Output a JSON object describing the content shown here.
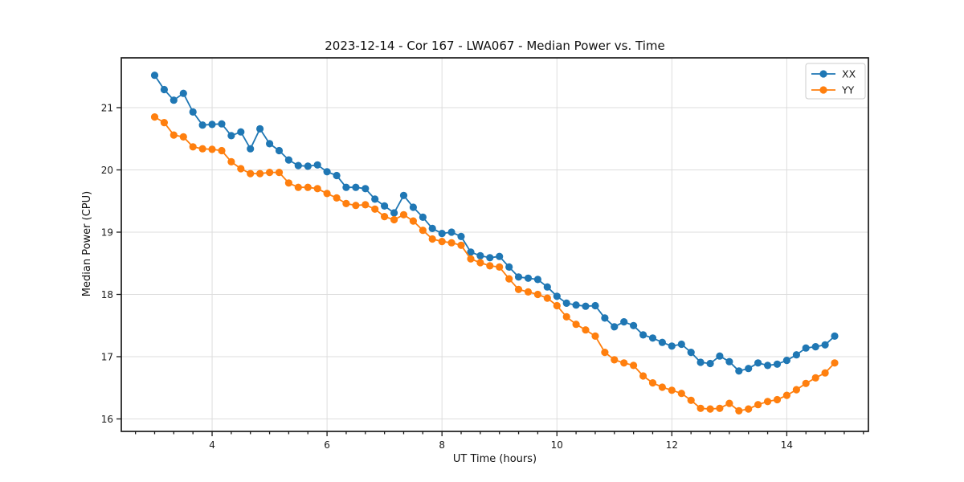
{
  "chart_data": {
    "type": "line",
    "title": "2023-12-14 - Cor 167 - LWA067 - Median Power vs. Time",
    "xlabel": "UT Time (hours)",
    "ylabel": "Median Power (CPU)",
    "xlim": [
      2.42,
      15.42
    ],
    "ylim": [
      15.8,
      21.8
    ],
    "x_major_ticks": [
      4,
      6,
      8,
      10,
      12,
      14
    ],
    "y_major_ticks": [
      16,
      17,
      18,
      19,
      20,
      21
    ],
    "x_minor_step": 0.33333,
    "grid": "major",
    "grid_color": "#dddddd",
    "spine_color": "#1a1a1a",
    "legend_position": "upper right",
    "legend_entries": [
      "XX",
      "YY"
    ],
    "x": [
      3.0,
      3.167,
      3.333,
      3.5,
      3.667,
      3.833,
      4.0,
      4.167,
      4.333,
      4.5,
      4.667,
      4.833,
      5.0,
      5.167,
      5.333,
      5.5,
      5.667,
      5.833,
      6.0,
      6.167,
      6.333,
      6.5,
      6.667,
      6.833,
      7.0,
      7.167,
      7.333,
      7.5,
      7.667,
      7.833,
      8.0,
      8.167,
      8.333,
      8.5,
      8.667,
      8.833,
      9.0,
      9.167,
      9.333,
      9.5,
      9.667,
      9.833,
      10.0,
      10.167,
      10.333,
      10.5,
      10.667,
      10.833,
      11.0,
      11.167,
      11.333,
      11.5,
      11.667,
      11.833,
      12.0,
      12.167,
      12.333,
      12.5,
      12.667,
      12.833,
      13.0,
      13.167,
      13.333,
      13.5,
      13.667,
      13.833,
      14.0,
      14.167,
      14.333,
      14.5,
      14.667,
      14.833
    ],
    "series": [
      {
        "name": "XX",
        "color": "#1f77b4",
        "marker": "circle",
        "values": [
          21.52,
          21.29,
          21.12,
          21.23,
          20.93,
          20.72,
          20.73,
          20.74,
          20.55,
          20.61,
          20.34,
          20.66,
          20.42,
          20.31,
          20.16,
          20.07,
          20.06,
          20.08,
          19.97,
          19.91,
          19.72,
          19.72,
          19.7,
          19.53,
          19.42,
          19.31,
          19.59,
          19.4,
          19.24,
          19.06,
          18.98,
          19.0,
          18.93,
          18.68,
          18.62,
          18.59,
          18.61,
          18.44,
          18.28,
          18.26,
          18.24,
          18.12,
          17.97,
          17.86,
          17.83,
          17.81,
          17.82,
          17.62,
          17.48,
          17.56,
          17.5,
          17.35,
          17.3,
          17.23,
          17.17,
          17.2,
          17.07,
          16.91,
          16.89,
          17.01,
          16.92,
          16.77,
          16.81,
          16.9,
          16.86,
          16.88,
          16.94,
          17.03,
          17.14,
          17.16,
          17.19,
          17.33
        ]
      },
      {
        "name": "YY",
        "color": "#ff7f0e",
        "marker": "circle",
        "values": [
          20.85,
          20.76,
          20.56,
          20.53,
          20.37,
          20.34,
          20.33,
          20.31,
          20.13,
          20.02,
          19.94,
          19.94,
          19.96,
          19.96,
          19.79,
          19.72,
          19.72,
          19.7,
          19.62,
          19.55,
          19.46,
          19.43,
          19.44,
          19.37,
          19.25,
          19.2,
          19.28,
          19.18,
          19.03,
          18.89,
          18.85,
          18.83,
          18.79,
          18.57,
          18.51,
          18.46,
          18.44,
          18.25,
          18.08,
          18.04,
          18.0,
          17.94,
          17.82,
          17.64,
          17.52,
          17.43,
          17.33,
          17.07,
          16.95,
          16.9,
          16.86,
          16.69,
          16.58,
          16.51,
          16.46,
          16.41,
          16.3,
          16.17,
          16.16,
          16.17,
          16.25,
          16.13,
          16.16,
          16.23,
          16.28,
          16.31,
          16.38,
          16.47,
          16.57,
          16.66,
          16.74,
          16.9
        ]
      }
    ]
  }
}
